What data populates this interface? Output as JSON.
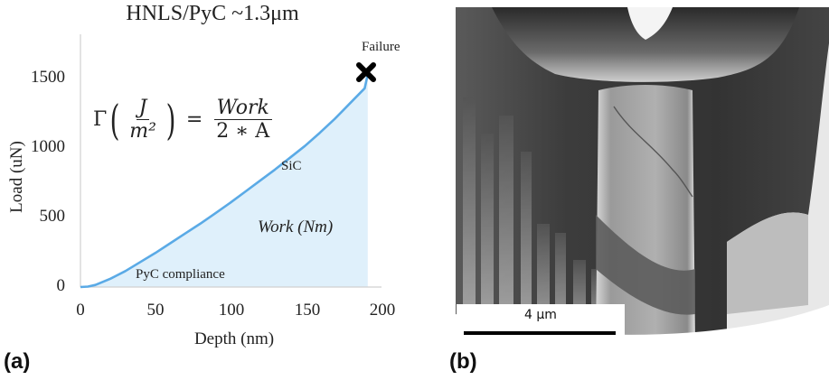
{
  "figure": {
    "panel_a_label": "(a)",
    "panel_b_label": "(b)"
  },
  "chart_data": {
    "type": "area",
    "title": "HNLS/PyC ~1.3μm",
    "xlabel": "Depth (nm)",
    "ylabel": "Load (uN)",
    "xlim": [
      0,
      200
    ],
    "ylim": [
      0,
      1700
    ],
    "xticks": [
      "0",
      "50",
      "100",
      "150",
      "200"
    ],
    "yticks": [
      "0",
      "500",
      "1000",
      "1500"
    ],
    "grid": false,
    "legend": null,
    "series": [
      {
        "name": "Load-depth curve",
        "color": "#5aaae6",
        "fill_color": "#dff0fb",
        "x": [
          0,
          5,
          10,
          20,
          30,
          40,
          50,
          60,
          70,
          80,
          90,
          100,
          110,
          120,
          130,
          140,
          150,
          160,
          170,
          180,
          190,
          192
        ],
        "y": [
          0,
          3,
          15,
          60,
          115,
          180,
          245,
          315,
          385,
          455,
          530,
          605,
          685,
          765,
          845,
          930,
          1015,
          1110,
          1210,
          1320,
          1430,
          1530
        ]
      }
    ],
    "annotations": [
      {
        "text": "Failure",
        "x": 192,
        "y": 1530,
        "marker": "x"
      },
      {
        "text": "SiC",
        "x": 140,
        "y": 870
      },
      {
        "text": "Work (Nm)",
        "x": 150,
        "y": 450,
        "style": "italic"
      },
      {
        "text": "PyC compliance",
        "x": 60,
        "y": 70
      }
    ],
    "formula": {
      "lhs_symbol": "Γ",
      "lhs_num": "J",
      "lhs_den": "m²",
      "equals": "=",
      "rhs_num": "Work",
      "rhs_den": "2 ∗ A"
    }
  },
  "sem_image": {
    "scale_bar_label": "4 μm"
  }
}
